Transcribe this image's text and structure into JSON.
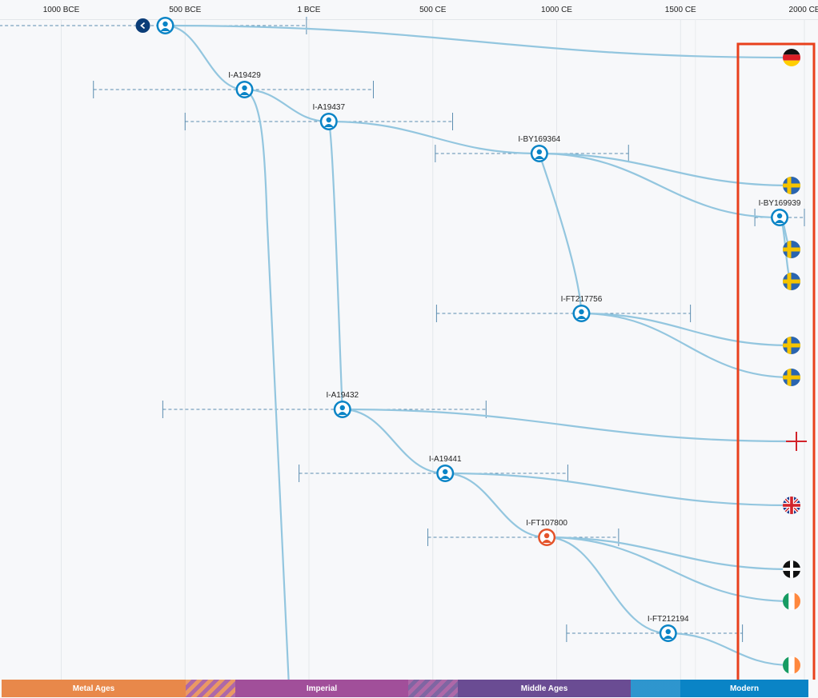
{
  "axis": {
    "ticks": [
      {
        "label": "1000 BCE",
        "year": -1000
      },
      {
        "label": "500 BCE",
        "year": -500
      },
      {
        "label": "1 BCE",
        "year": 0
      },
      {
        "label": "500 CE",
        "year": 500
      },
      {
        "label": "1000 CE",
        "year": 1000
      },
      {
        "label": "1500 CE",
        "year": 1500
      },
      {
        "label": "2000 CE",
        "year": 2000
      }
    ]
  },
  "tree": {
    "nodes": [
      {
        "id": "root",
        "label": "",
        "year": -580,
        "row": 0,
        "color": "#0a84c6"
      },
      {
        "id": "I-A19429",
        "label": "I-A19429",
        "year": -260,
        "row": 2,
        "color": "#0a84c6"
      },
      {
        "id": "I-A19437",
        "label": "I-A19437",
        "year": 80,
        "row": 3,
        "color": "#0a84c6"
      },
      {
        "id": "I-BY169364",
        "label": "I-BY169364",
        "year": 930,
        "row": 4,
        "color": "#0a84c6"
      },
      {
        "id": "I-BY169939",
        "label": "I-BY169939",
        "year": 1900,
        "row": 6,
        "color": "#0a84c6"
      },
      {
        "id": "I-FT217756",
        "label": "I-FT217756",
        "year": 1100,
        "row": 9,
        "color": "#0a84c6"
      },
      {
        "id": "I-A19432",
        "label": "I-A19432",
        "year": 135,
        "row": 12,
        "color": "#0a84c6"
      },
      {
        "id": "I-A19441",
        "label": "I-A19441",
        "year": 550,
        "row": 14,
        "color": "#0a84c6"
      },
      {
        "id": "I-FT107800",
        "label": "I-FT107800",
        "year": 960,
        "row": 16,
        "color": "#e4532a"
      },
      {
        "id": "I-FT212194",
        "label": "I-FT212194",
        "year": 1450,
        "row": 19,
        "color": "#0a84c6"
      }
    ],
    "ranges": [
      {
        "node": "root",
        "from": -1250,
        "to": -10
      },
      {
        "node": "I-A19429",
        "from": -870,
        "to": 260
      },
      {
        "node": "I-A19437",
        "from": -500,
        "to": 580
      },
      {
        "node": "I-BY169364",
        "from": 510,
        "to": 1290
      },
      {
        "node": "I-BY169939",
        "from": 1800,
        "to": 2000
      },
      {
        "node": "I-FT217756",
        "from": 515,
        "to": 1540
      },
      {
        "node": "I-A19432",
        "from": -590,
        "to": 715
      },
      {
        "node": "I-A19441",
        "from": -40,
        "to": 1045
      },
      {
        "node": "I-FT107800",
        "from": 480,
        "to": 1250
      },
      {
        "node": "I-FT212194",
        "from": 1040,
        "to": 1750
      }
    ],
    "leaves": [
      {
        "country": "Germany",
        "row": 1
      },
      {
        "country": "Sweden",
        "row": 5
      },
      {
        "country": "Sweden",
        "row": 7
      },
      {
        "country": "Sweden",
        "row": 8
      },
      {
        "country": "Sweden",
        "row": 10
      },
      {
        "country": "Sweden",
        "row": 11
      },
      {
        "country": "England",
        "row": 13
      },
      {
        "country": "United Kingdom",
        "row": 15
      },
      {
        "country": "Cornwall",
        "row": 17
      },
      {
        "country": "Ireland",
        "row": 18
      },
      {
        "country": "Ireland",
        "row": 20
      }
    ],
    "edges": [
      [
        "root",
        "I-A19429"
      ],
      [
        "root",
        "leaf:0"
      ],
      [
        "I-A19429",
        "I-A19437"
      ],
      [
        "I-A19429",
        "offscreen-down"
      ],
      [
        "I-A19437",
        "I-BY169364"
      ],
      [
        "I-A19437",
        "I-A19432"
      ],
      [
        "I-BY169364",
        "leaf:1"
      ],
      [
        "I-BY169364",
        "I-BY169939"
      ],
      [
        "I-BY169364",
        "I-FT217756"
      ],
      [
        "I-BY169939",
        "leaf:2"
      ],
      [
        "I-BY169939",
        "leaf:3"
      ],
      [
        "I-FT217756",
        "leaf:4"
      ],
      [
        "I-FT217756",
        "leaf:5"
      ],
      [
        "I-A19432",
        "leaf:6"
      ],
      [
        "I-A19432",
        "I-A19441"
      ],
      [
        "I-A19441",
        "leaf:7"
      ],
      [
        "I-A19441",
        "I-FT107800"
      ],
      [
        "I-FT107800",
        "leaf:8"
      ],
      [
        "I-FT107800",
        "leaf:9"
      ],
      [
        "I-FT107800",
        "I-FT212194"
      ],
      [
        "I-FT212194",
        "leaf:10"
      ]
    ]
  },
  "highlight": {
    "color": "#e8401c"
  },
  "collapse_button": {
    "icon": "chevron-left-icon",
    "color": "#0b3d78"
  },
  "eras": [
    {
      "label": "Metal Ages",
      "color": "#e8884a"
    },
    {
      "label": "Imperial",
      "color": "#a14f9a"
    },
    {
      "label": "Middle Ages",
      "color": "#6a4c93"
    },
    {
      "label": "Modern",
      "color": "#0a84c6"
    }
  ]
}
